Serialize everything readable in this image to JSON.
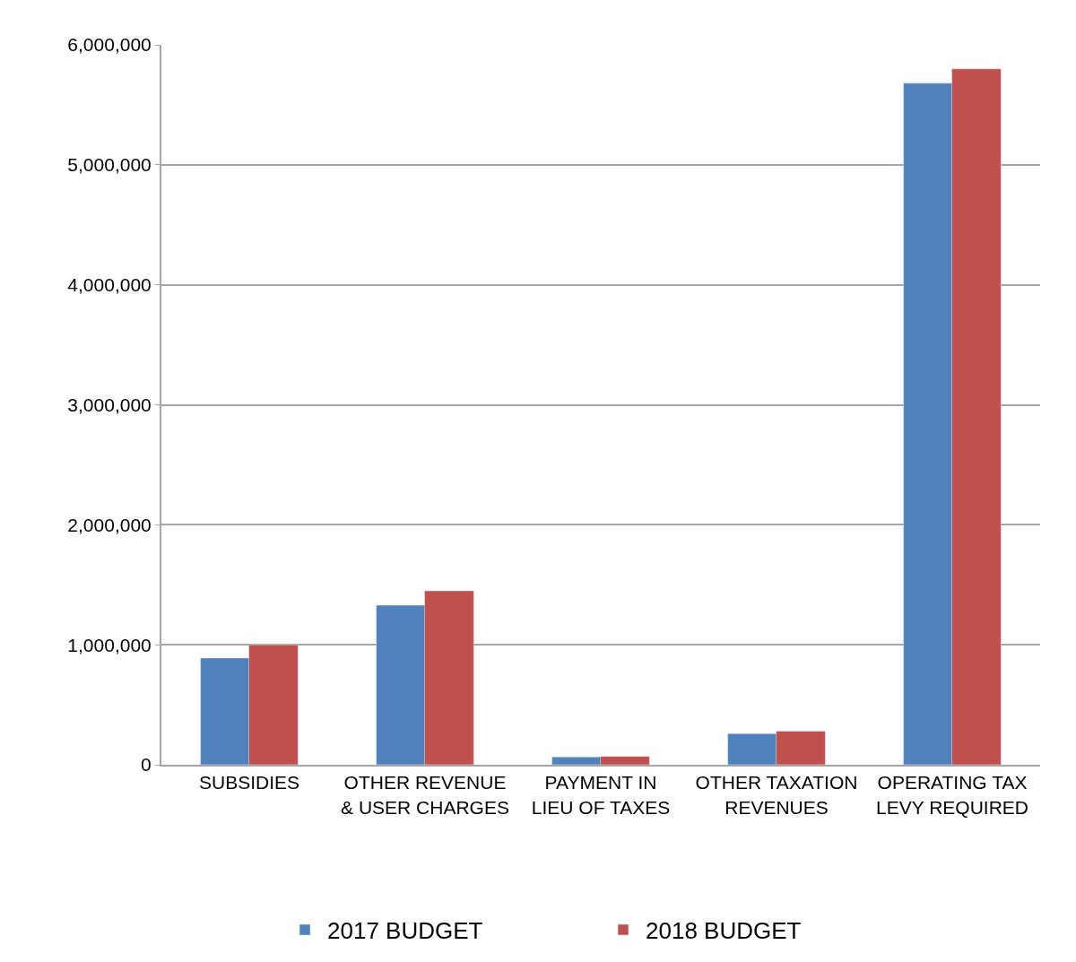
{
  "chart_data": {
    "type": "bar",
    "categories": [
      "SUBSIDIES",
      "OTHER REVENUE & USER CHARGES",
      "PAYMENT IN LIEU OF TAXES",
      "OTHER TAXATION REVENUES",
      "OPERATING TAX LEVY REQUIRED"
    ],
    "series": [
      {
        "name": "2017 BUDGET",
        "color": "#4f81bd",
        "values": [
          890000,
          1330000,
          65000,
          260000,
          5680000
        ]
      },
      {
        "name": "2018 BUDGET",
        "color": "#c0504d",
        "values": [
          1000000,
          1450000,
          70000,
          280000,
          5800000
        ]
      }
    ],
    "ylim": [
      0,
      6000000
    ],
    "yticks": [
      {
        "value": 0,
        "label": "0"
      },
      {
        "value": 1000000,
        "label": "1,000,000"
      },
      {
        "value": 2000000,
        "label": "2,000,000"
      },
      {
        "value": 3000000,
        "label": "3,000,000"
      },
      {
        "value": 4000000,
        "label": "4,000,000"
      },
      {
        "value": 5000000,
        "label": "5,000,000"
      },
      {
        "value": 6000000,
        "label": "6,000,000"
      }
    ],
    "grid": "y",
    "legend": "bottom"
  }
}
